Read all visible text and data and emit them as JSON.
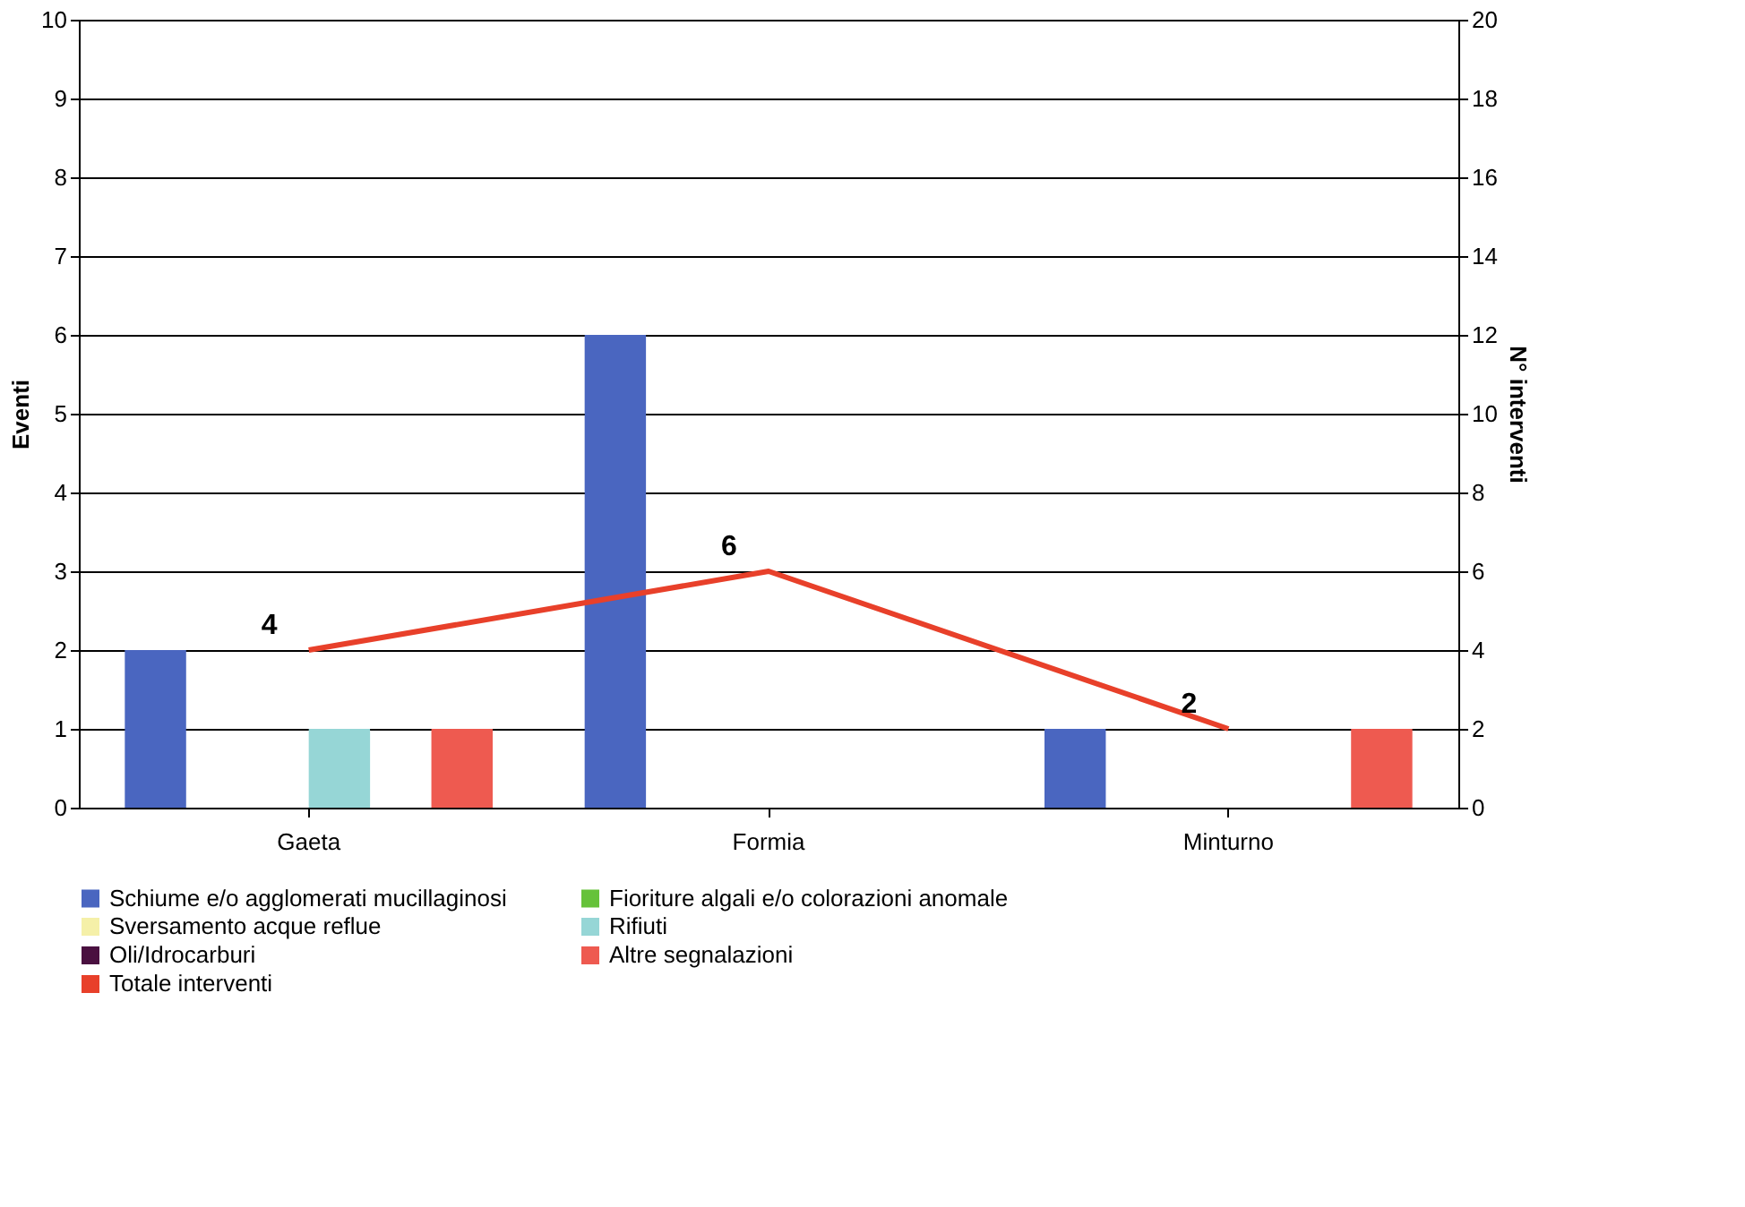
{
  "chart_data": {
    "type": "bar",
    "ylabel": "Eventi",
    "y2label": "N° interventi",
    "categories": [
      "Gaeta",
      "Formia",
      "Minturno"
    ],
    "series": [
      {
        "name": "Schiume e/o agglomerati mucillaginosi",
        "color": "#4a66c0",
        "values": [
          2,
          6,
          1
        ]
      },
      {
        "name": "Fioriture algali e/o colorazioni anomale",
        "color": "#66c23a",
        "values": [
          0,
          0,
          0
        ]
      },
      {
        "name": "Sversamento acque reflue",
        "color": "#f5f0a8",
        "values": [
          0,
          0,
          0
        ]
      },
      {
        "name": "Rifiuti",
        "color": "#96d6d6",
        "values": [
          1,
          0,
          0
        ]
      },
      {
        "name": "Oli/Idrocarburi",
        "color": "#4a1040",
        "values": [
          0,
          0,
          0
        ]
      },
      {
        "name": "Altre segnalazioni",
        "color": "#ee5a50",
        "values": [
          1,
          0,
          1
        ]
      },
      {
        "name": "Totale interventi",
        "type": "line",
        "axis": "y2",
        "color": "#e8402a",
        "values": [
          4,
          6,
          2
        ],
        "data_labels": true
      }
    ],
    "ylim": [
      0,
      10
    ],
    "yticks": [
      0,
      1,
      2,
      3,
      4,
      5,
      6,
      7,
      8,
      9,
      10
    ],
    "y2lim": [
      0,
      20
    ],
    "y2ticks": [
      0,
      2,
      4,
      6,
      8,
      10,
      12,
      14,
      16,
      18,
      20
    ],
    "grid": "y",
    "legend": "bottom",
    "marker": "none"
  }
}
